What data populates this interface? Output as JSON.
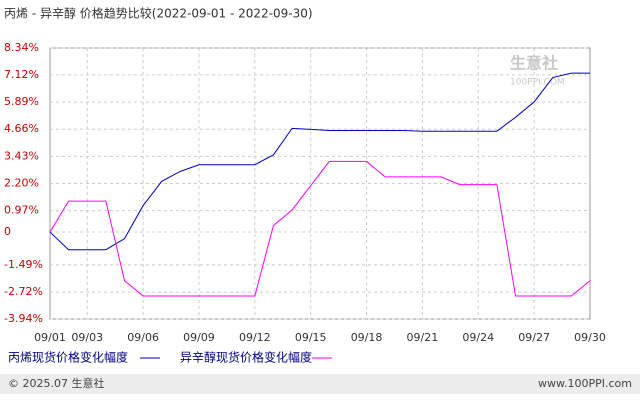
{
  "chart_data": {
    "type": "line",
    "title": "丙烯 - 异辛醇 价格趋势比较(2022-09-01 - 2022-09-30)",
    "categories": [
      "09/01",
      null,
      "09/03",
      null,
      null,
      "09/06",
      null,
      null,
      "09/09",
      null,
      null,
      "09/12",
      null,
      null,
      "09/15",
      null,
      null,
      "09/18",
      null,
      null,
      "09/21",
      null,
      null,
      "09/24",
      null,
      null,
      "09/27",
      null,
      null,
      "09/30"
    ],
    "series": [
      {
        "name": "丙烯现货价格变化幅度",
        "color": "#0000cc",
        "values": [
          0,
          -0.8,
          -0.8,
          -0.8,
          -0.3,
          1.2,
          2.3,
          2.75,
          3.05,
          3.05,
          3.05,
          3.05,
          3.5,
          4.7,
          4.65,
          4.6,
          4.6,
          4.6,
          4.6,
          4.6,
          4.57,
          4.57,
          4.57,
          4.57,
          4.57,
          5.2,
          5.9,
          7.0,
          7.2,
          7.2
        ]
      },
      {
        "name": "异辛醇现货价格变化幅度",
        "color": "#ff00ff",
        "values": [
          0,
          1.4,
          1.4,
          1.4,
          -2.2,
          -2.9,
          -2.9,
          -2.9,
          -2.9,
          -2.9,
          -2.9,
          -2.9,
          0.3,
          1.0,
          2.1,
          3.2,
          3.2,
          3.2,
          2.5,
          2.5,
          2.5,
          2.5,
          2.15,
          2.15,
          2.15,
          -2.9,
          -2.9,
          -2.9,
          -2.9,
          -2.2
        ]
      }
    ],
    "ylim": [
      -3.94,
      8.34
    ],
    "yticks": [
      {
        "value": 8.34,
        "label": "8.34%"
      },
      {
        "value": 7.12,
        "label": "7.12%"
      },
      {
        "value": 5.89,
        "label": "5.89%"
      },
      {
        "value": 4.66,
        "label": "4.66%"
      },
      {
        "value": 3.43,
        "label": "3.43%"
      },
      {
        "value": 2.2,
        "label": "2.20%"
      },
      {
        "value": 0.97,
        "label": "0.97%"
      },
      0,
      {
        "value": -1.49,
        "label": "-1.49%"
      },
      {
        "value": -2.72,
        "label": "-2.72%"
      },
      {
        "value": -3.94,
        "label": "-3.94%"
      }
    ],
    "grid": true,
    "watermark": [
      "生意社",
      "100PPI.COM"
    ],
    "footer": {
      "left": "© 2025.07 生意社",
      "right": "www.100PPI.com"
    }
  }
}
